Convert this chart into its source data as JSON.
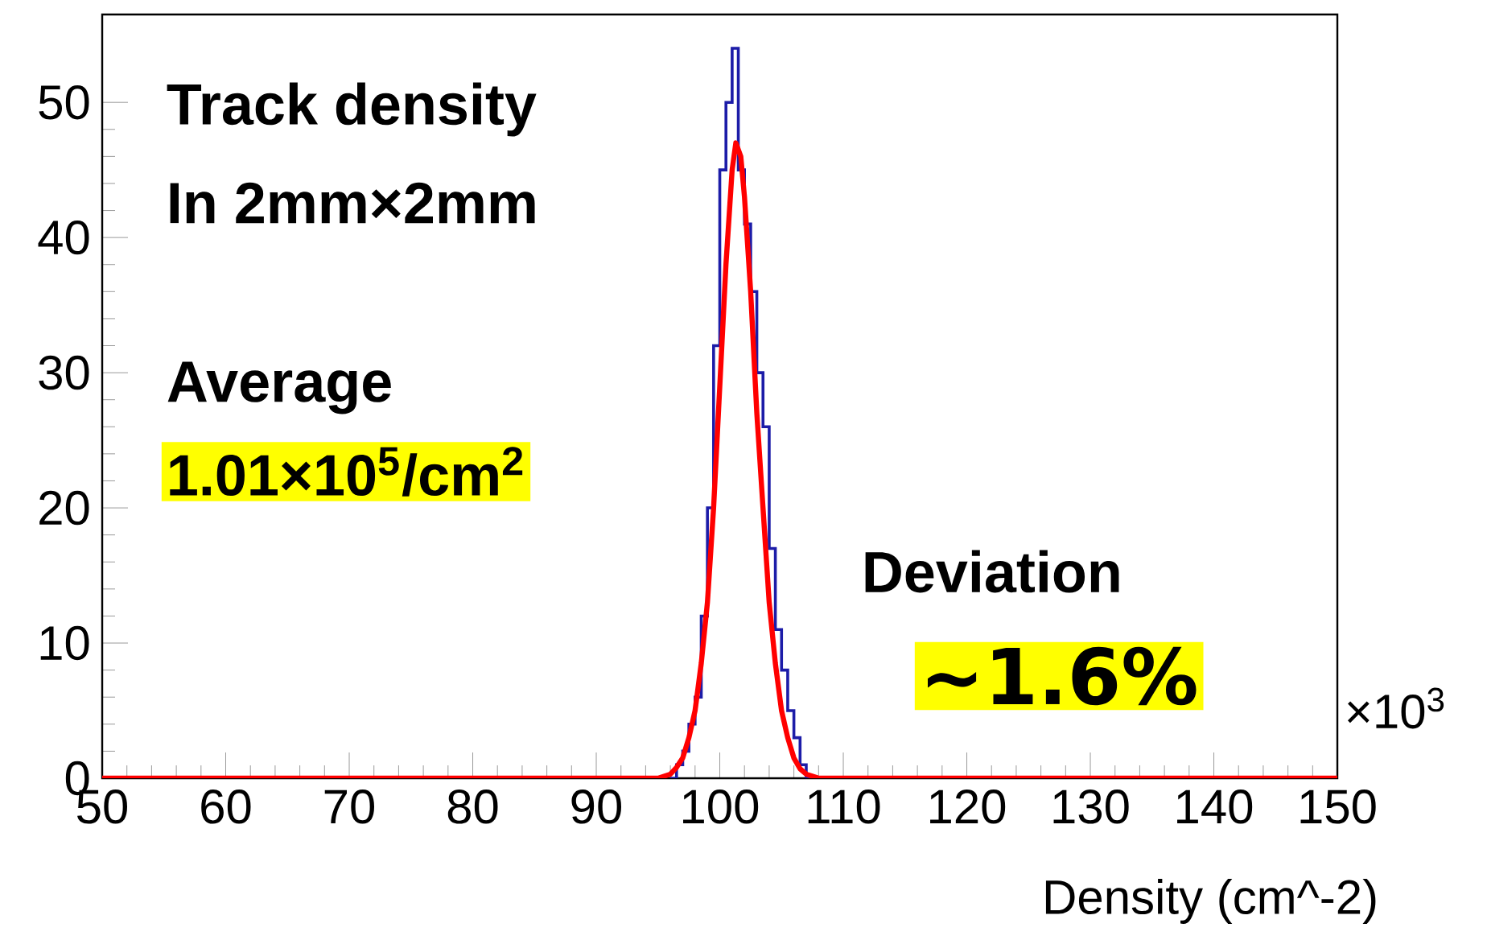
{
  "chart_data": {
    "type": "histogram",
    "xlabel": "Density (cm^-2)",
    "annotations": [
      "Track density",
      "In 2mm×2mm",
      "Average",
      "1.01×10$^{5}$/cm$^{2}$",
      "Deviation",
      "∼1.6%",
      "×10$^{3}$"
    ],
    "series": [
      {
        "color": "#1c1ca8",
        "bins": [
          96.0,
          96.5,
          97.0,
          97.5,
          98.0,
          98.5,
          99.0,
          99.5,
          100.0,
          100.5,
          101.0,
          101.5,
          102.0,
          102.5,
          103.0,
          103.5,
          104.0,
          104.5,
          105.0,
          105.5,
          106.0,
          106.5,
          107.0,
          107.5
        ],
        "values": [
          0,
          1,
          2,
          4,
          6,
          12,
          20,
          32,
          45,
          50,
          54,
          45,
          41,
          36,
          30,
          26,
          17,
          11,
          8,
          5,
          3,
          1,
          0
        ]
      },
      {
        "type": "line",
        "color": "#ff0000",
        "x": [
          50,
          95,
          96,
          96.5,
          97,
          97.5,
          98,
          98.5,
          99,
          99.5,
          100,
          100.5,
          101,
          101.3,
          101.7,
          102,
          102.5,
          103,
          103.5,
          104,
          104.5,
          105,
          105.5,
          106,
          106.5,
          107,
          108,
          150
        ],
        "values": [
          0,
          0,
          0.3,
          0.8,
          1.5,
          3,
          5,
          8.5,
          13,
          20,
          29,
          38,
          45,
          47,
          46,
          43,
          36,
          27,
          20,
          13,
          8.5,
          5,
          3,
          1.5,
          0.7,
          0.3,
          0,
          0
        ]
      }
    ],
    "xlim": [
      50,
      150
    ],
    "ylim": [
      0,
      56.5
    ],
    "xticks": [
      50,
      60,
      70,
      80,
      90,
      100,
      110,
      120,
      130,
      140,
      150
    ],
    "yticks": [
      0,
      10,
      20,
      30,
      40,
      50
    ]
  }
}
